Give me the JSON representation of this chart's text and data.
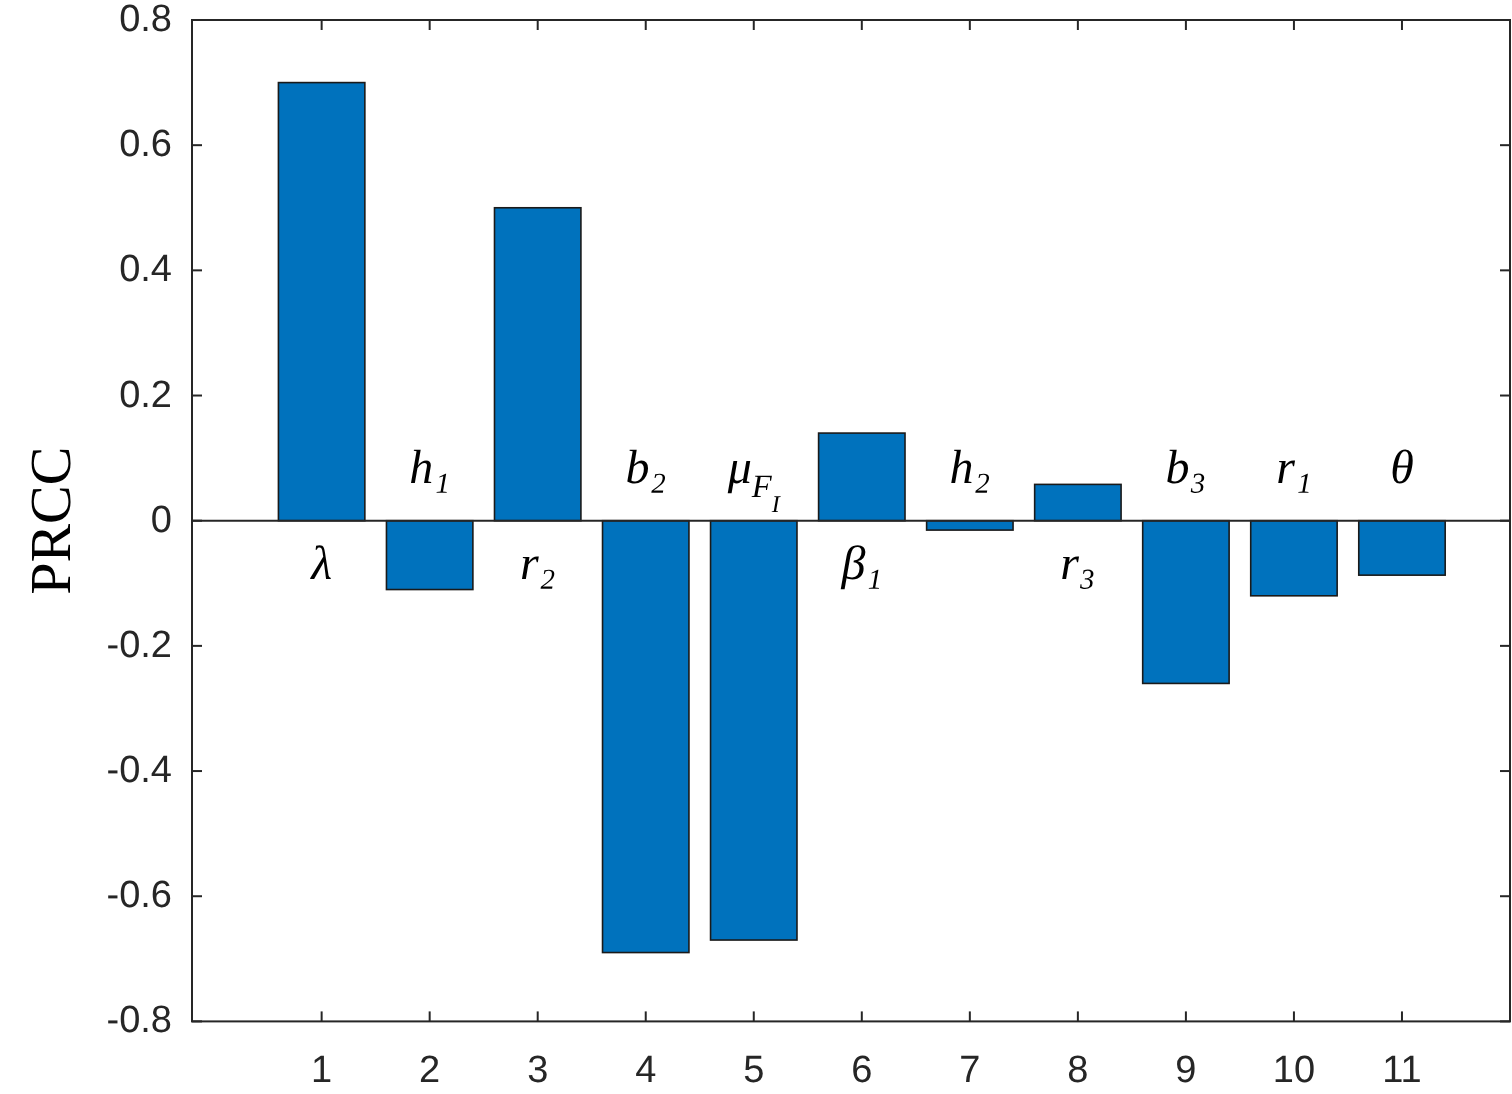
{
  "chart_data": {
    "type": "bar",
    "ylabel": "PRCC",
    "x": [
      1,
      2,
      3,
      4,
      5,
      6,
      7,
      8,
      9,
      10,
      11
    ],
    "values": [
      0.7,
      -0.11,
      0.5,
      -0.69,
      -0.67,
      0.14,
      -0.015,
      0.058,
      -0.26,
      -0.12,
      -0.087
    ],
    "color": "#0072bd",
    "xlim": [
      -0.2,
      12
    ],
    "xticks": [
      1,
      2,
      3,
      4,
      5,
      6,
      7,
      8,
      9,
      10,
      11
    ],
    "ylim": [
      -0.8,
      0.8
    ],
    "yticks": [
      -0.8,
      -0.6,
      -0.4,
      -0.2,
      0,
      0.2,
      0.4,
      0.6,
      0.8
    ],
    "annotations": [
      "λ",
      "h₁",
      "r₂",
      "b₂",
      "μ$_{F}$$_{I}$",
      "β₁",
      "h₂",
      "r₃",
      "b₃",
      "r₁",
      "θ"
    ]
  }
}
